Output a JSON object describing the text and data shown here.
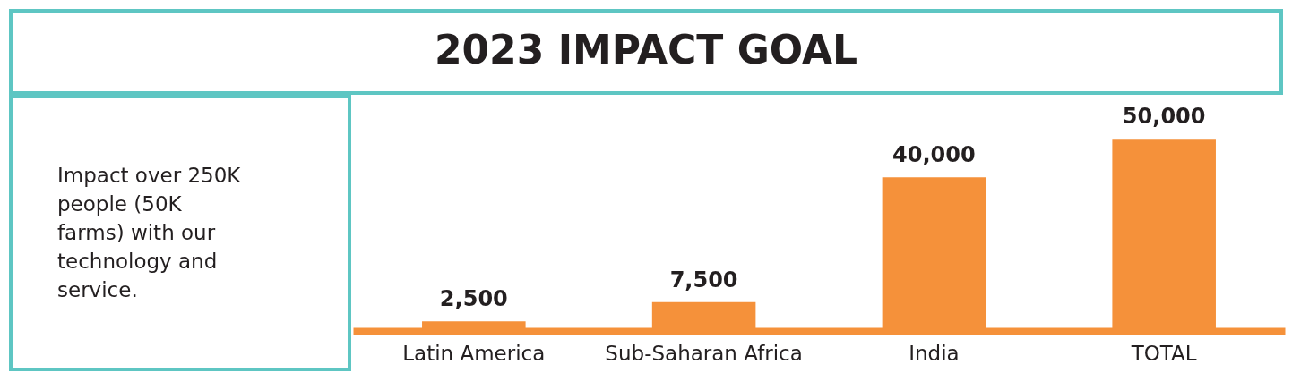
{
  "chart_data": {
    "type": "bar",
    "title": "2023 IMPACT GOAL",
    "categories": [
      "Latin America",
      "Sub-Saharan Africa",
      "India",
      "TOTAL"
    ],
    "values": [
      2500,
      7500,
      40000,
      50000
    ],
    "color": "#f5913a",
    "value_labels": [
      "2,500",
      "7,500",
      "40,000",
      "50,000"
    ],
    "annotations": [
      "Impact over 250K people (50K farms) with our technology and service."
    ]
  }
}
